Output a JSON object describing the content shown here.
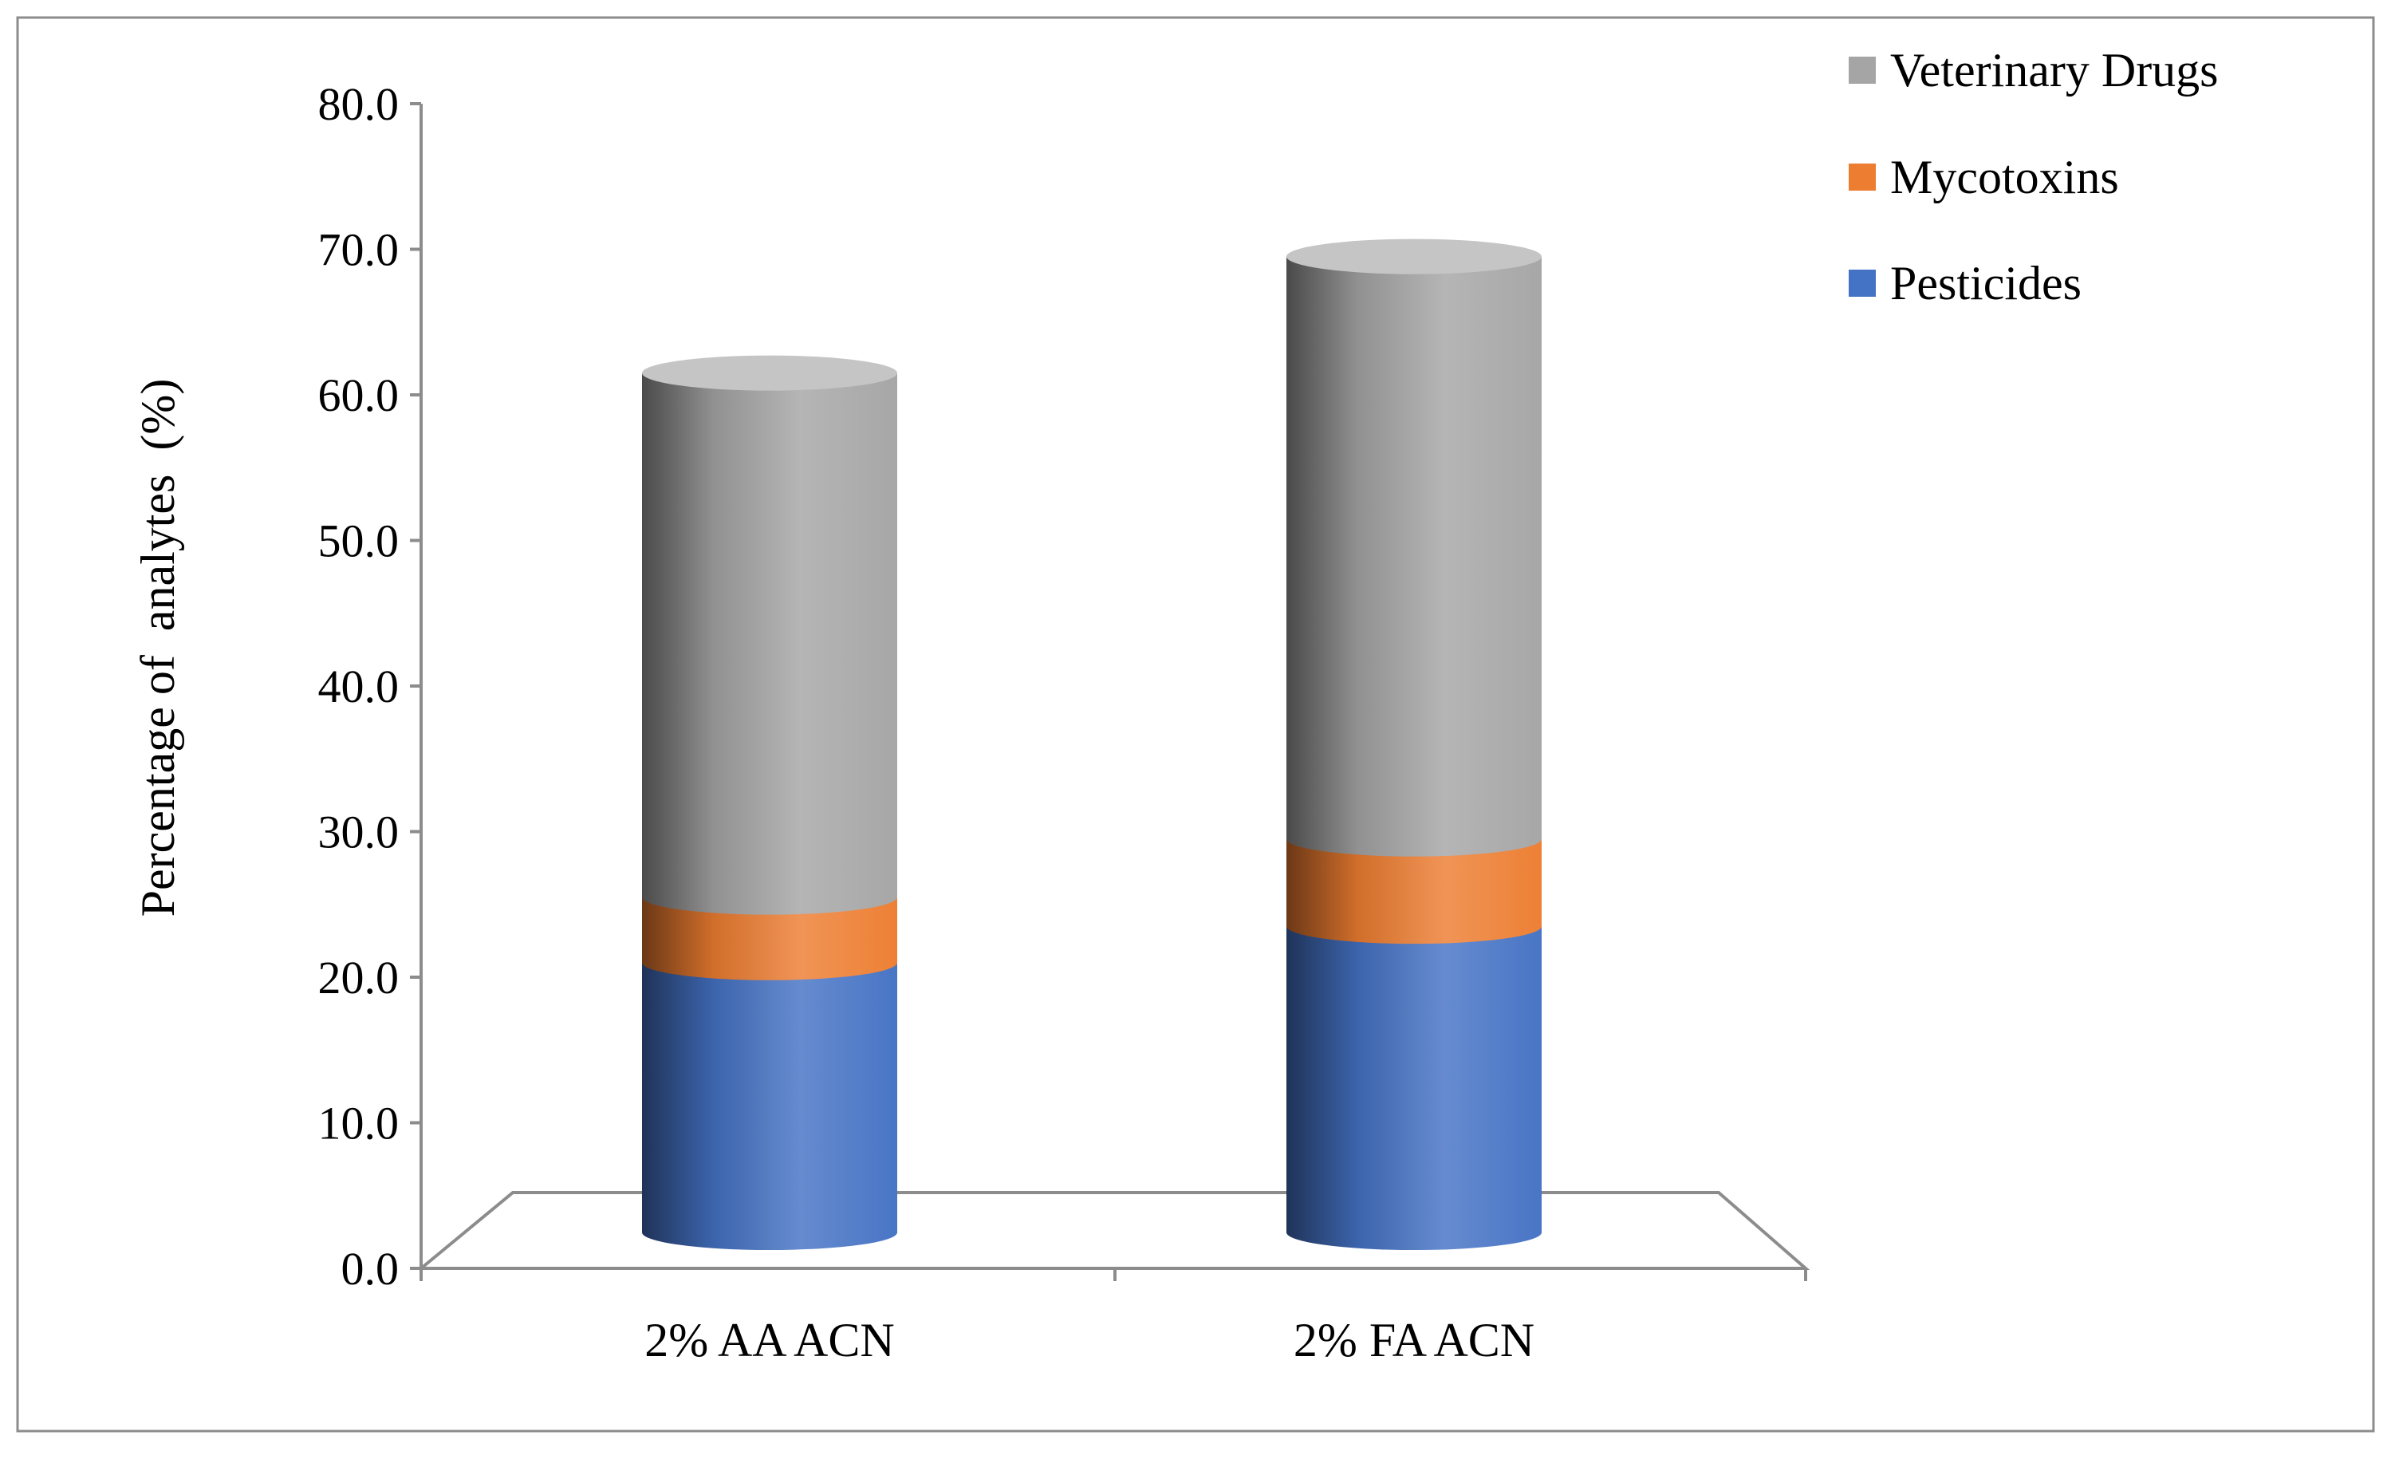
{
  "chart_data": {
    "type": "bar",
    "stacked": true,
    "style": "3d-cylinder",
    "categories": [
      "2% AA ACN",
      "2% FA ACN"
    ],
    "series": [
      {
        "name": "Pesticides",
        "color": "#4472C4",
        "values": [
          21.0,
          23.5
        ]
      },
      {
        "name": "Mycotoxins",
        "color": "#ED7D31",
        "values": [
          4.5,
          6.0
        ]
      },
      {
        "name": "Veterinary Drugs",
        "color": "#A5A5A5",
        "values": [
          36.0,
          40.0
        ]
      }
    ],
    "title": "",
    "xlabel": "",
    "ylabel": "Percentage of  analytes  (%)",
    "ylim": [
      0,
      80
    ],
    "yticks": [
      "0.0",
      "10.0",
      "20.0",
      "30.0",
      "40.0",
      "50.0",
      "60.0",
      "70.0",
      "80.0"
    ],
    "legend_position": "top-right",
    "legend_order": [
      "Veterinary Drugs",
      "Mycotoxins",
      "Pesticides"
    ],
    "grid": false
  }
}
